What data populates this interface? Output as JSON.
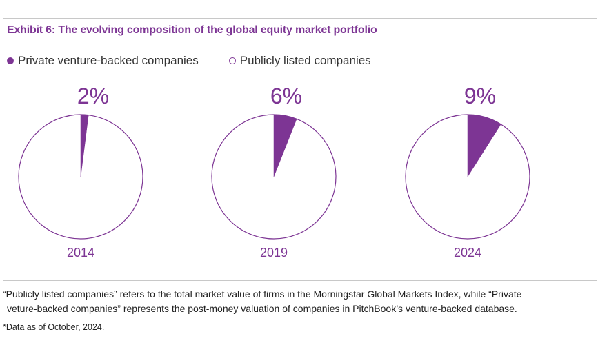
{
  "title": "Exhibit 6: The evolving composition of the global equity market portfolio",
  "legend": {
    "private_label": "Private venture-backed companies",
    "public_label": "Publicly listed companies"
  },
  "colors": {
    "private": "#7d3594",
    "public": "#ffffff",
    "outline": "#7d3594",
    "label": "#7d3594"
  },
  "chart_data": [
    {
      "type": "pie",
      "year": "2014",
      "label": "2%",
      "slices": [
        {
          "name": "Private venture-backed companies",
          "value": 2
        },
        {
          "name": "Publicly listed companies",
          "value": 98
        }
      ]
    },
    {
      "type": "pie",
      "year": "2019",
      "label": "6%",
      "slices": [
        {
          "name": "Private venture-backed companies",
          "value": 6
        },
        {
          "name": "Publicly listed companies",
          "value": 94
        }
      ]
    },
    {
      "type": "pie",
      "year": "2024",
      "label": "9%",
      "slices": [
        {
          "name": "Private venture-backed companies",
          "value": 9
        },
        {
          "name": "Publicly listed companies",
          "value": 91
        }
      ]
    }
  ],
  "footnote": {
    "line1": "“Publicly listed companies” refers to the total market value of firms in the Morningstar Global Markets Index, while “Private",
    "line2": "veture-backed companies” represents the post-money valuation of companies in PitchBook’s venture-backed database."
  },
  "data_note": "*Data as of October, 2024."
}
